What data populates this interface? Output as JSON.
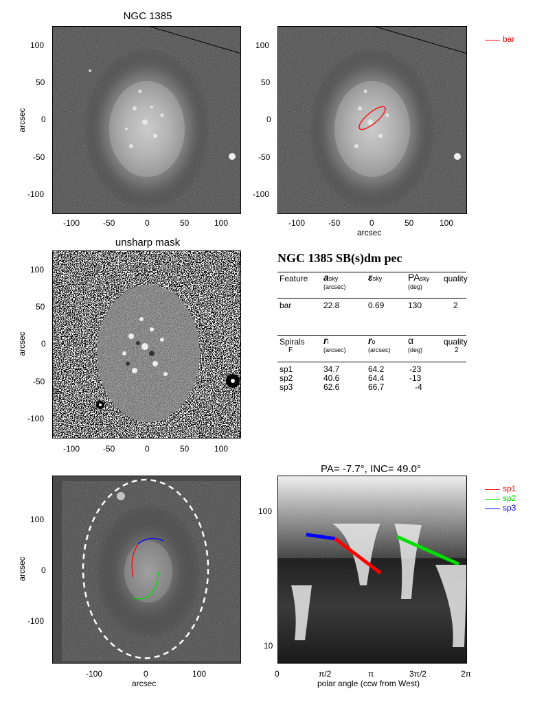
{
  "panel1": {
    "title": "NGC 1385",
    "ylabel": "arcsec",
    "yticks": [
      "100",
      "50",
      "0",
      "-50",
      "-100"
    ],
    "xticks": [
      "-100",
      "-50",
      "0",
      "50",
      "100"
    ]
  },
  "panel2": {
    "xlabel": "arcsec",
    "yticks": [
      "100",
      "50",
      "0",
      "-50",
      "-100"
    ],
    "xticks": [
      "-100",
      "-50",
      "0",
      "50",
      "100"
    ],
    "legend": {
      "label": "bar",
      "color": "#ff0000"
    }
  },
  "panel3": {
    "title": "unsharp mask",
    "ylabel": "arcsec",
    "yticks": [
      "100",
      "50",
      "0",
      "-50",
      "-100"
    ],
    "xticks": [
      "-100",
      "-50",
      "0",
      "50",
      "100"
    ]
  },
  "table": {
    "title": "NGC 1385  SB(s)dm pec",
    "bar_header": {
      "feature": "Feature",
      "a": "a",
      "a_sub": "sky",
      "a_unit": "(arcsec)",
      "eps": "ε",
      "eps_sub": "sky",
      "pa": "PA",
      "pa_sub": "sky",
      "pa_unit": "(deg)",
      "quality": "quality"
    },
    "bar_row": {
      "feature": "bar",
      "a": "22.8",
      "eps": "0.69",
      "pa": "130",
      "quality": "2"
    },
    "spiral_header": {
      "label": "Spirals",
      "class": "F",
      "ri": "r",
      "ri_sub": "i",
      "ri_unit": "(arcsec)",
      "ro": "r",
      "ro_sub": "o",
      "ro_unit": "(arcsec)",
      "alpha": "α",
      "alpha_unit": "(deg)",
      "quality": "quality",
      "quality_val": "2"
    },
    "spiral_rows": [
      {
        "name": "sp1",
        "ri": "34.7",
        "ro": "64.2",
        "alpha": "-23"
      },
      {
        "name": "sp2",
        "ri": "40.6",
        "ro": "64.4",
        "alpha": "-13"
      },
      {
        "name": "sp3",
        "ri": "62.6",
        "ro": "66.7",
        "alpha": "-4"
      }
    ]
  },
  "panel5": {
    "xlabel": "arcsec",
    "ylabel": "arcsec",
    "yticks": [
      "100",
      "0",
      "-100"
    ],
    "xticks": [
      "-100",
      "0",
      "100"
    ]
  },
  "panel6": {
    "title": "PA=  -7.7°, INC=  49.0°",
    "xlabel": "polar angle (ccw from West)",
    "yticks": [
      "100",
      "10"
    ],
    "xticks": [
      "0",
      "π/2",
      "π",
      "3π/2",
      "2π"
    ],
    "legend": [
      {
        "label": "sp1",
        "color": "#ff0000"
      },
      {
        "label": "sp2",
        "color": "#00e000"
      },
      {
        "label": "sp3",
        "color": "#0000ff"
      }
    ]
  }
}
